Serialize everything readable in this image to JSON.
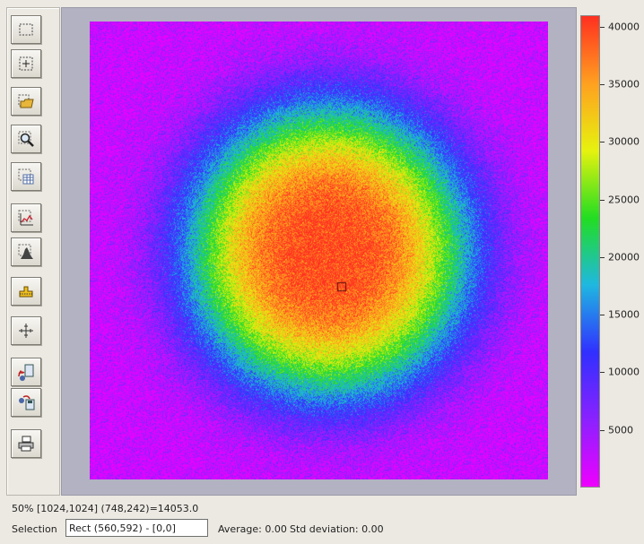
{
  "toolbar": {
    "buttons": [
      {
        "name": "select-rectangle-icon"
      },
      {
        "name": "select-point-icon"
      },
      {
        "name": "open-folder-icon"
      },
      {
        "name": "zoom-icon"
      },
      {
        "name": "table-view-icon"
      },
      {
        "name": "profile-plot-icon"
      },
      {
        "name": "histogram-icon"
      },
      {
        "name": "threshold-icon"
      },
      {
        "name": "crosshair-icon"
      },
      {
        "name": "load-image-icon"
      },
      {
        "name": "save-image-icon"
      },
      {
        "name": "print-icon"
      }
    ]
  },
  "status": {
    "coordinates": "50% [1024,1024] (748,242)=14053.0",
    "selection_label": "Selection",
    "selection_value": "Rect (560,592) - [0,0]",
    "average": "Average: 0.00",
    "std_deviation": "Std deviation: 0.00"
  },
  "colorscale": {
    "min": 0,
    "max": 41000,
    "ticks": [
      {
        "value": 40000,
        "label": "40000"
      },
      {
        "value": 35000,
        "label": "35000"
      },
      {
        "value": 30000,
        "label": "30000"
      },
      {
        "value": 25000,
        "label": "25000"
      },
      {
        "value": 20000,
        "label": "20000"
      },
      {
        "value": 15000,
        "label": "15000"
      },
      {
        "value": 10000,
        "label": "10000"
      },
      {
        "value": 5000,
        "label": "5000"
      }
    ],
    "colors": [
      "#ee00ff",
      "#8a22ff",
      "#3030ff",
      "#1fb8e0",
      "#22dd22",
      "#e6f20f",
      "#ffa020",
      "#ff3020"
    ]
  },
  "image": {
    "background": "#b2b2c2",
    "peak_value": 40000,
    "floor_value": 2000
  }
}
